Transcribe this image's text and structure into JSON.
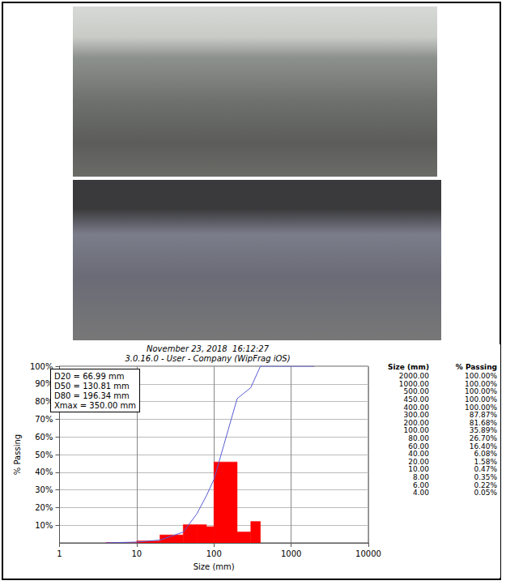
{
  "chart_data": {
    "type": "histogram",
    "title": "November 23, 2018  16:12:27",
    "subtitle": "3.0.16.0 - User - Company (WipFrag iOS)",
    "x_label": "Size (mm)",
    "y_label": "% Passing",
    "bins": [
      4,
      6,
      8,
      10,
      20,
      40,
      60,
      80,
      100,
      200,
      300,
      400
    ],
    "counts": [
      0.17,
      0.13,
      0.12,
      1.1,
      4.5,
      10.3,
      10.3,
      9.2,
      45.8,
      6.2,
      12.1
    ],
    "color": "#ff0000",
    "series": [
      {
        "type": "line",
        "color": "#5b5bd6",
        "x": [
          4,
          6,
          8,
          10,
          20,
          40,
          60,
          80,
          100,
          200,
          300,
          400,
          450,
          500,
          1000,
          2000
        ],
        "values": [
          0.05,
          0.22,
          0.35,
          0.47,
          1.58,
          6.08,
          16.4,
          26.7,
          35.89,
          81.68,
          87.87,
          100,
          100,
          100,
          100,
          100
        ]
      }
    ],
    "annotations": [
      "D20 = 66.99 mm",
      "D50 = 130.81 mm",
      "D80 = 196.34 mm",
      "Xmax = 350.00 mm"
    ],
    "table": {
      "header": [
        "Size (mm)",
        "% Passing"
      ],
      "rows": [
        [
          "2000.00",
          "100.00%"
        ],
        [
          "1000.00",
          "100.00%"
        ],
        [
          "500.00",
          "100.00%"
        ],
        [
          "450.00",
          "100.00%"
        ],
        [
          "400.00",
          "100.00%"
        ],
        [
          "300.00",
          "87.87%"
        ],
        [
          "200.00",
          "81.68%"
        ],
        [
          "100.00",
          "35.89%"
        ],
        [
          "80.00",
          "26.70%"
        ],
        [
          "60.00",
          "16.40%"
        ],
        [
          "40.00",
          "6.08%"
        ],
        [
          "20.00",
          "1.58%"
        ],
        [
          "10.00",
          "0.47%"
        ],
        [
          "8.00",
          "0.35%"
        ],
        [
          "6.00",
          "0.22%"
        ],
        [
          "4.00",
          "0.05%"
        ]
      ]
    },
    "log": "x",
    "xlim": [
      1,
      10000
    ],
    "xticks": [
      1,
      10,
      100,
      1000,
      10000
    ],
    "ylim": [
      0,
      100
    ],
    "yticks": [
      {
        "value": 10,
        "label": "10%"
      },
      {
        "value": 20,
        "label": "20%"
      },
      {
        "value": 30,
        "label": "30%"
      },
      {
        "value": 40,
        "label": "40%"
      },
      {
        "value": 50,
        "label": "50%"
      },
      {
        "value": 60,
        "label": "60%"
      },
      {
        "value": 70,
        "label": "70%"
      },
      {
        "value": 80,
        "label": "80%"
      },
      {
        "value": 90,
        "label": "90%"
      },
      {
        "value": 100,
        "label": "100%"
      }
    ],
    "grid": true
  }
}
